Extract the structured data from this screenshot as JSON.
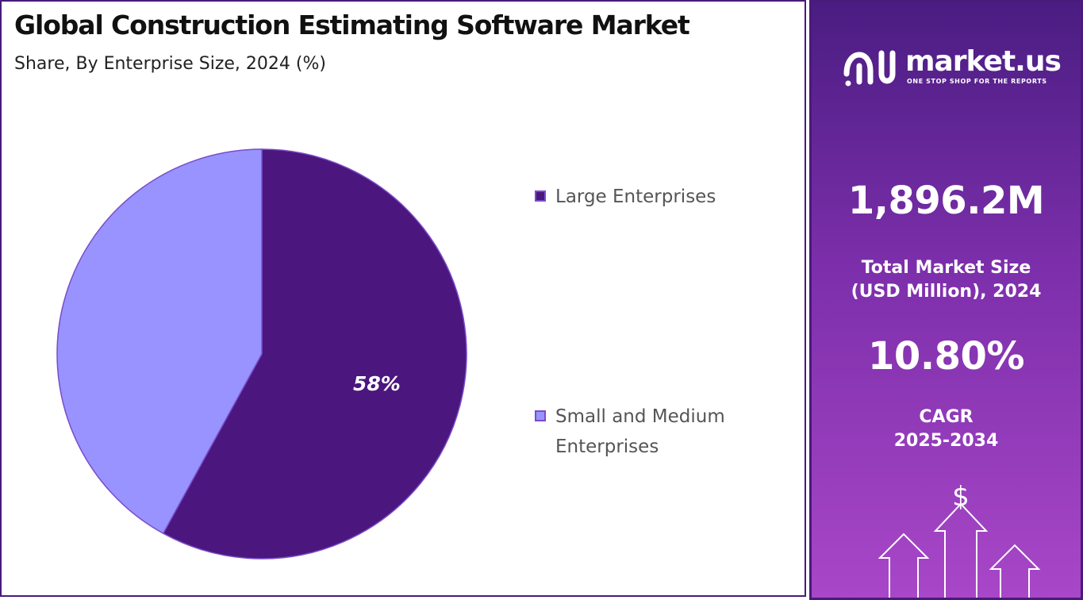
{
  "chart_data": {
    "type": "pie",
    "title": "Global Construction Estimating Software Market",
    "subtitle": "Share, By Enterprise Size, 2024 (%)",
    "slices": [
      {
        "label": "Large Enterprises",
        "value": 58,
        "value_label": "58%",
        "color": "#4b167e"
      },
      {
        "label": "Small and Medium Enterprises",
        "value": 42,
        "value_label": "",
        "color": "#9893ff"
      }
    ],
    "slice_border_color": "#7a4cc9",
    "start_angle_deg": 0,
    "direction": "clockwise",
    "legend_position": "right"
  },
  "legend": {
    "items": [
      {
        "label": "Large Enterprises",
        "color": "#4b167e"
      },
      {
        "label": "Small and Medium Enterprises",
        "color": "#9893ff"
      }
    ]
  },
  "brand": {
    "name": "market.us",
    "tagline": "ONE STOP SHOP FOR THE REPORTS",
    "logo_icon": "market-us-logo-icon"
  },
  "stats": {
    "market_size_value": "1,896.2M",
    "market_size_label_line1": "Total Market Size",
    "market_size_label_line2": "(USD Million), 2024",
    "cagr_value": "10.80%",
    "cagr_label_line1": "CAGR",
    "cagr_label_line2": "2025-2034"
  },
  "decor": {
    "currency_symbol": "$",
    "icon": "growth-arrows-icon"
  },
  "colors": {
    "panel_gradient_top": "#4a1d82",
    "panel_gradient_bottom": "#a847c8",
    "border": "#4a1a7a"
  }
}
